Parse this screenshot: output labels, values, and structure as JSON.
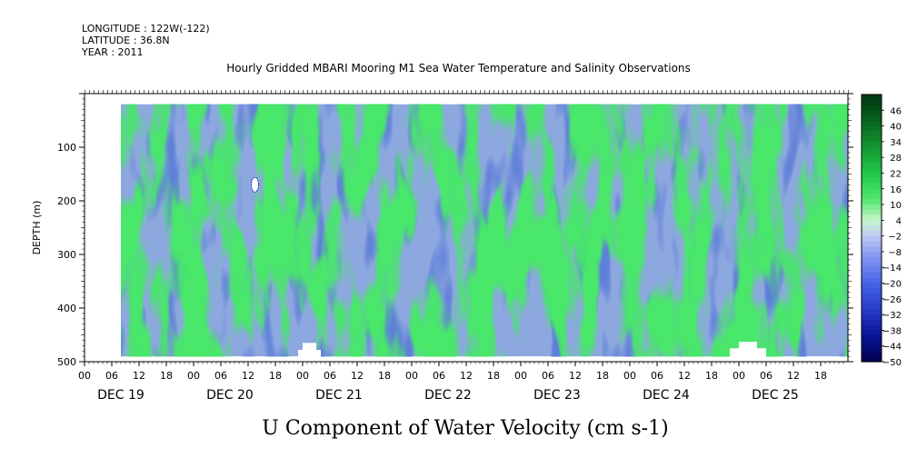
{
  "header": {
    "longitude": "LONGITUDE : 122W(-122)",
    "latitude": "LATITUDE : 36.8N",
    "year": "YEAR : 2011",
    "title": "Hourly Gridded MBARI Mooring M1 Sea Water Temperature and Salinity Observations"
  },
  "chart_data": {
    "type": "heatmap",
    "title": "U Component of Water Velocity (cm s-1)",
    "subtitle": "Hourly Gridded MBARI Mooring M1 Sea Water Temperature and Salinity Observations",
    "ylabel": "DEPTH (m)",
    "xlabel": "",
    "x_range_hours": [
      0,
      168
    ],
    "data_x_range_hours": [
      8,
      168
    ],
    "y_range": [
      500,
      0
    ],
    "data_y_range": [
      20,
      490
    ],
    "x_hour_ticks": [
      "00",
      "06",
      "12",
      "18",
      "00",
      "06",
      "12",
      "18",
      "00",
      "06",
      "12",
      "18",
      "00",
      "06",
      "12",
      "18",
      "00",
      "06",
      "12",
      "18",
      "00",
      "06",
      "12",
      "18",
      "00",
      "06",
      "12",
      "18"
    ],
    "x_day_labels": [
      "DEC 19",
      "DEC 20",
      "DEC 21",
      "DEC 22",
      "DEC 23",
      "DEC 24",
      "DEC 25"
    ],
    "y_ticks": [
      100,
      200,
      300,
      400,
      500
    ],
    "colorbar_levels": [
      -50,
      -44,
      -38,
      -32,
      -26,
      -20,
      -14,
      -8,
      -2,
      4,
      10,
      16,
      22,
      28,
      34,
      40,
      46
    ],
    "colorbar_labels": [
      "46",
      "40",
      "34",
      "28",
      "22",
      "16",
      "10",
      "4",
      "-2",
      "-8",
      "-14",
      "-20",
      "-26",
      "-32",
      "-38",
      "-44",
      "-50"
    ],
    "colors": {
      "strong_negative": "#000060",
      "negative": "#8898e8",
      "near_zero": "#d8f0d8",
      "positive": "#40e060",
      "strong_positive": "#005000"
    }
  }
}
